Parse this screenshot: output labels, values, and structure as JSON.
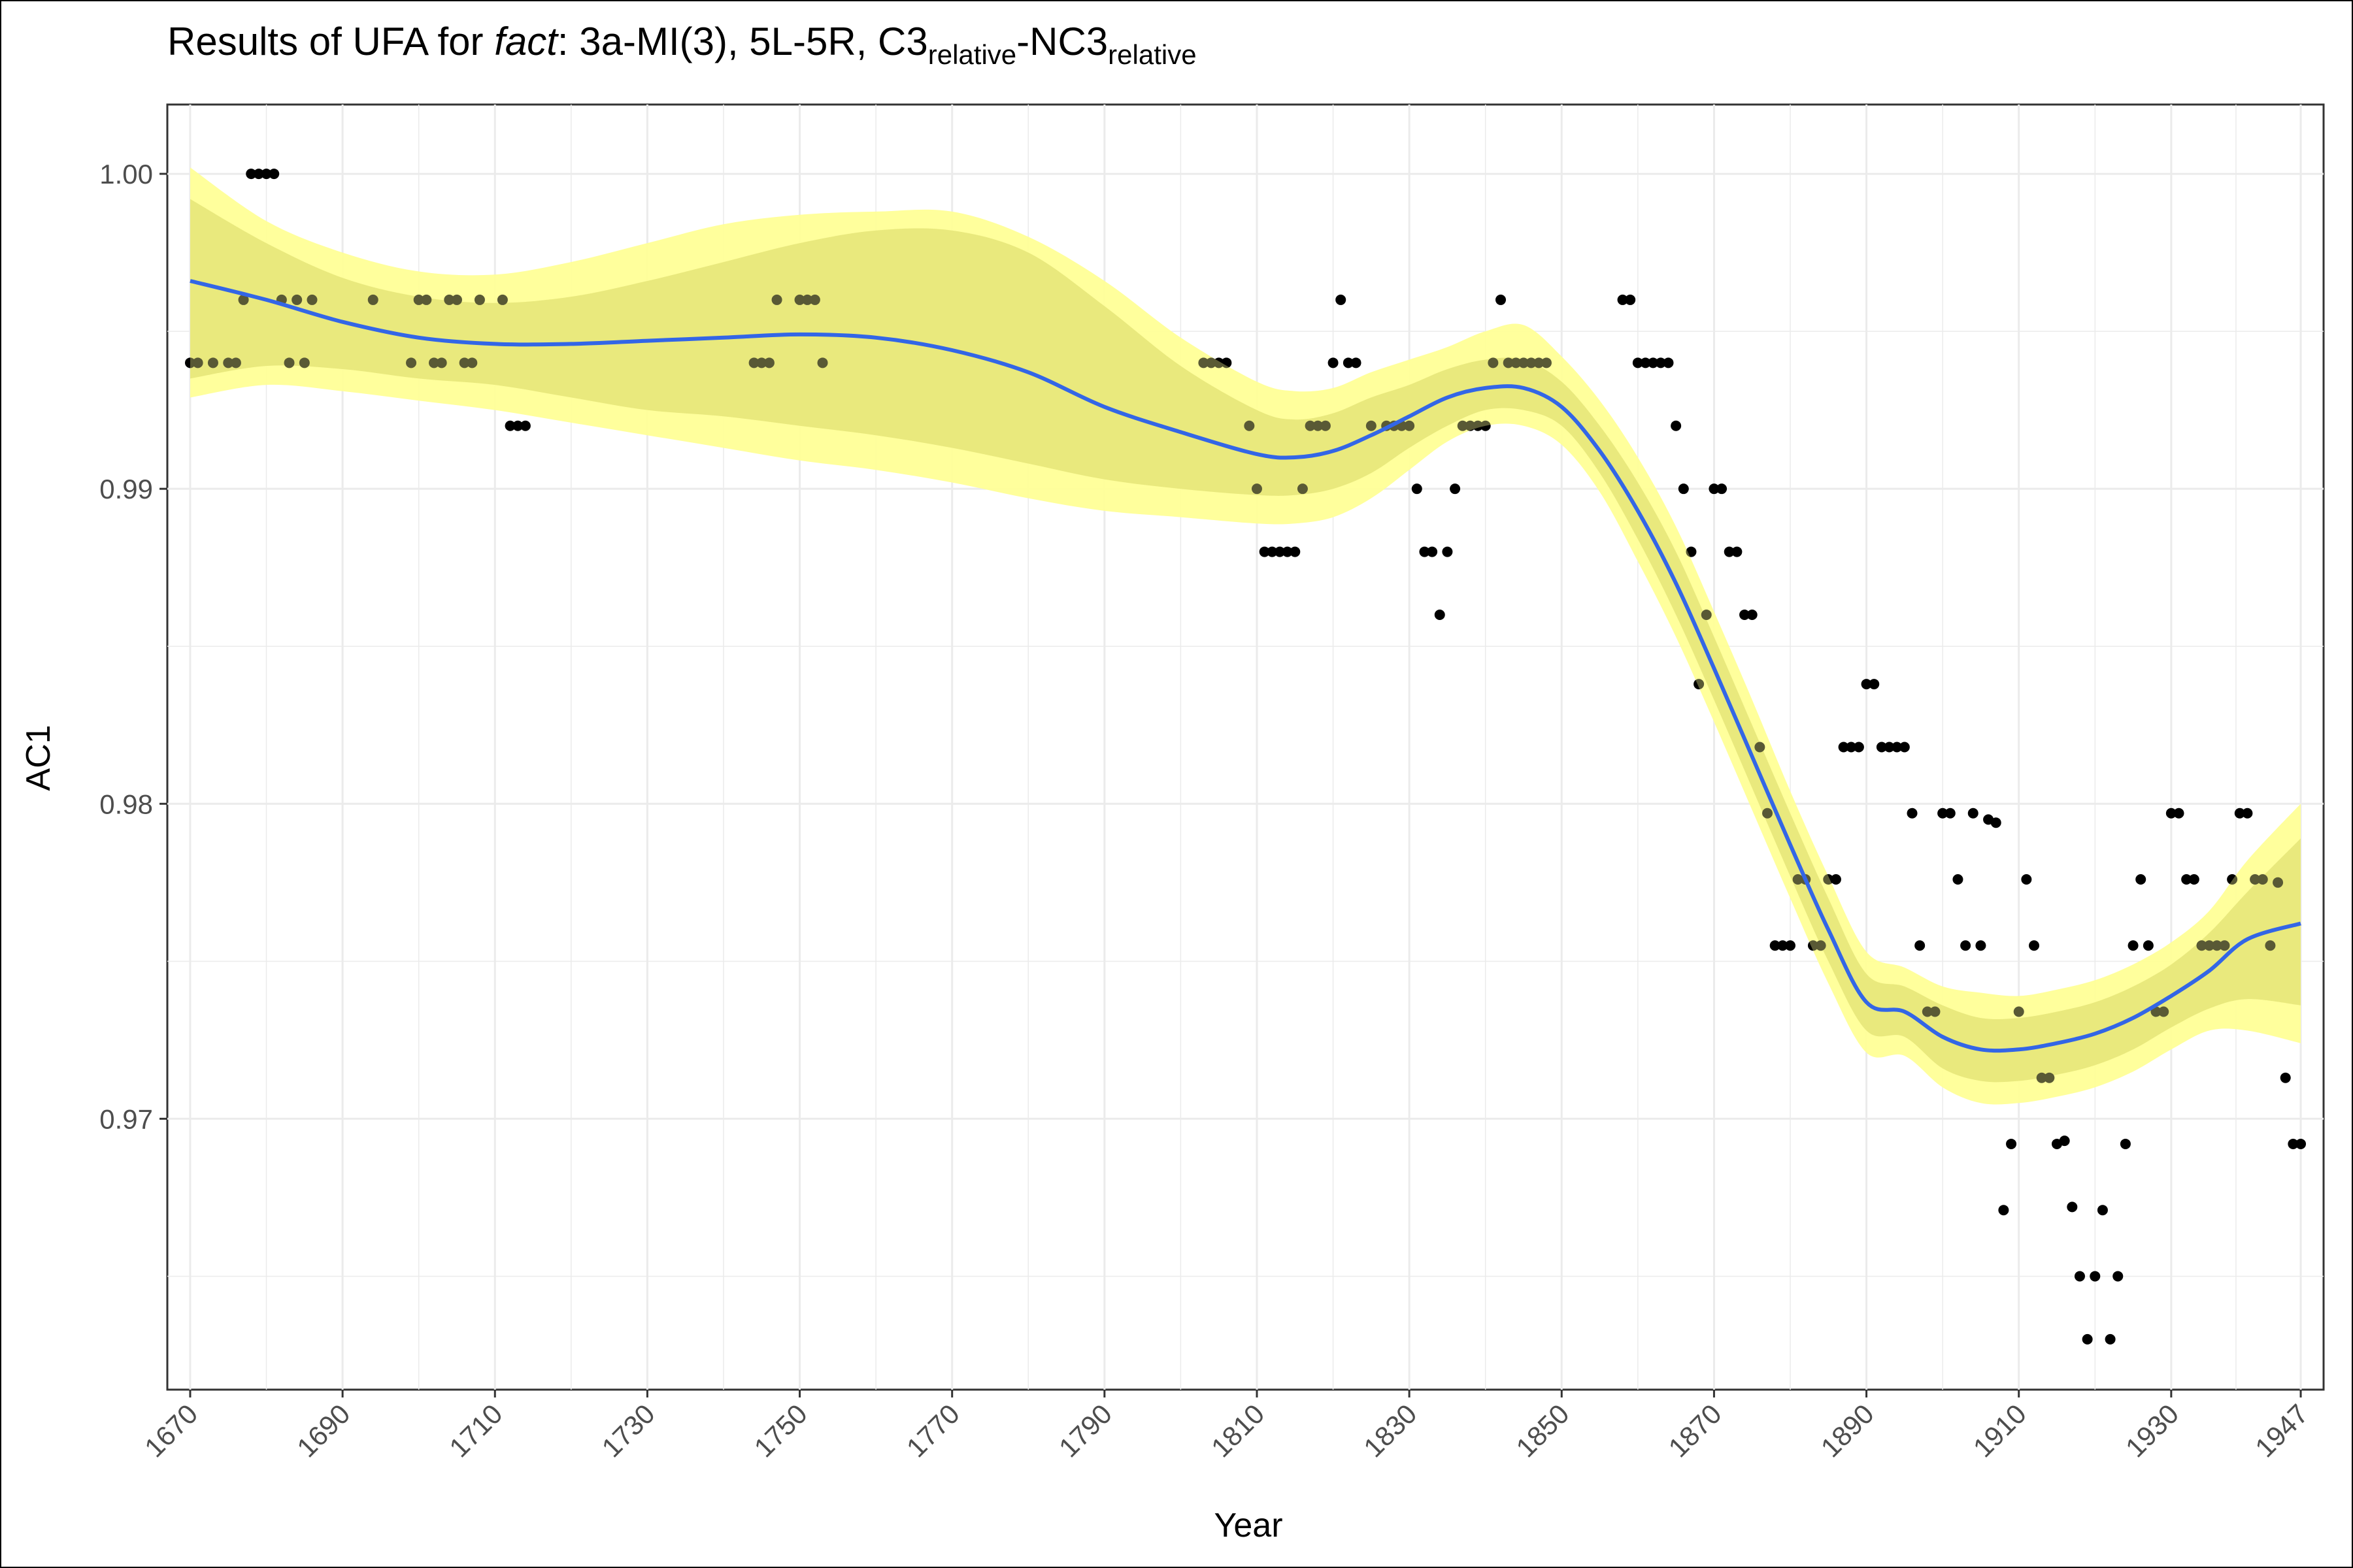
{
  "chart_data": {
    "type": "scatter",
    "title": {
      "prefix": "Results of UFA for ",
      "word": "fact",
      "mid": ": 3a-MI(3), 5L-5R, C3",
      "sub1": "relative",
      "dash": "-NC3",
      "sub2": "relative"
    },
    "xlabel": "Year",
    "ylabel": "AC1",
    "xlim": [
      1667,
      1950
    ],
    "ylim": [
      0.9614,
      1.0022
    ],
    "x_ticks": [
      1670,
      1690,
      1710,
      1730,
      1750,
      1770,
      1790,
      1810,
      1830,
      1850,
      1870,
      1890,
      1910,
      1930,
      1947
    ],
    "y_ticks": [
      0.97,
      0.98,
      0.99,
      1.0
    ],
    "y_tick_labels": [
      "0.97",
      "0.98",
      "0.99",
      "1.00"
    ],
    "grid": true,
    "colors": {
      "points": "#000000",
      "smooth_line": "#3366e6",
      "outer_band": "#ffff99",
      "inner_band": "#c8c850",
      "grid": "#ebebeb"
    },
    "series": [
      {
        "values": [
          [
            1670,
            0.994
          ],
          [
            1671,
            0.994
          ],
          [
            1673,
            0.994
          ],
          [
            1675,
            0.994
          ],
          [
            1676,
            0.994
          ],
          [
            1677,
            0.996
          ],
          [
            1678,
            1.0
          ],
          [
            1679,
            1.0
          ],
          [
            1680,
            1.0
          ],
          [
            1681,
            1.0
          ],
          [
            1682,
            0.996
          ],
          [
            1683,
            0.994
          ],
          [
            1684,
            0.996
          ],
          [
            1685,
            0.994
          ],
          [
            1686,
            0.996
          ],
          [
            1694,
            0.996
          ],
          [
            1699,
            0.994
          ],
          [
            1700,
            0.996
          ],
          [
            1701,
            0.996
          ],
          [
            1702,
            0.994
          ],
          [
            1703,
            0.994
          ],
          [
            1704,
            0.996
          ],
          [
            1705,
            0.996
          ],
          [
            1706,
            0.994
          ],
          [
            1707,
            0.994
          ],
          [
            1708,
            0.996
          ],
          [
            1711,
            0.996
          ],
          [
            1712,
            0.992
          ],
          [
            1713,
            0.992
          ],
          [
            1714,
            0.992
          ],
          [
            1744,
            0.994
          ],
          [
            1745,
            0.994
          ],
          [
            1746,
            0.994
          ],
          [
            1747,
            0.996
          ],
          [
            1750,
            0.996
          ],
          [
            1751,
            0.996
          ],
          [
            1752,
            0.996
          ],
          [
            1753,
            0.994
          ],
          [
            1803,
            0.994
          ],
          [
            1804,
            0.994
          ],
          [
            1805,
            0.994
          ],
          [
            1806,
            0.994
          ],
          [
            1809,
            0.992
          ],
          [
            1810,
            0.99
          ],
          [
            1811,
            0.988
          ],
          [
            1812,
            0.988
          ],
          [
            1813,
            0.988
          ],
          [
            1814,
            0.988
          ],
          [
            1815,
            0.988
          ],
          [
            1816,
            0.99
          ],
          [
            1817,
            0.992
          ],
          [
            1818,
            0.992
          ],
          [
            1819,
            0.992
          ],
          [
            1820,
            0.994
          ],
          [
            1821,
            0.996
          ],
          [
            1822,
            0.994
          ],
          [
            1823,
            0.994
          ],
          [
            1825,
            0.992
          ],
          [
            1827,
            0.992
          ],
          [
            1828,
            0.992
          ],
          [
            1829,
            0.992
          ],
          [
            1830,
            0.992
          ],
          [
            1831,
            0.99
          ],
          [
            1832,
            0.988
          ],
          [
            1833,
            0.988
          ],
          [
            1834,
            0.986
          ],
          [
            1835,
            0.988
          ],
          [
            1836,
            0.99
          ],
          [
            1837,
            0.992
          ],
          [
            1838,
            0.992
          ],
          [
            1839,
            0.992
          ],
          [
            1840,
            0.992
          ],
          [
            1841,
            0.994
          ],
          [
            1842,
            0.996
          ],
          [
            1843,
            0.994
          ],
          [
            1844,
            0.994
          ],
          [
            1845,
            0.994
          ],
          [
            1846,
            0.994
          ],
          [
            1847,
            0.994
          ],
          [
            1848,
            0.994
          ],
          [
            1858,
            0.996
          ],
          [
            1859,
            0.996
          ],
          [
            1860,
            0.994
          ],
          [
            1861,
            0.994
          ],
          [
            1862,
            0.994
          ],
          [
            1863,
            0.994
          ],
          [
            1864,
            0.994
          ],
          [
            1865,
            0.992
          ],
          [
            1866,
            0.99
          ],
          [
            1867,
            0.988
          ],
          [
            1868,
            0.9838
          ],
          [
            1869,
            0.986
          ],
          [
            1870,
            0.99
          ],
          [
            1871,
            0.99
          ],
          [
            1872,
            0.988
          ],
          [
            1873,
            0.988
          ],
          [
            1874,
            0.986
          ],
          [
            1875,
            0.986
          ],
          [
            1876,
            0.9818
          ],
          [
            1877,
            0.9797
          ],
          [
            1878,
            0.9755
          ],
          [
            1879,
            0.9755
          ],
          [
            1880,
            0.9755
          ],
          [
            1881,
            0.9776
          ],
          [
            1882,
            0.9776
          ],
          [
            1883,
            0.9755
          ],
          [
            1884,
            0.9755
          ],
          [
            1885,
            0.9776
          ],
          [
            1886,
            0.9776
          ],
          [
            1887,
            0.9818
          ],
          [
            1888,
            0.9818
          ],
          [
            1889,
            0.9818
          ],
          [
            1890,
            0.9838
          ],
          [
            1891,
            0.9838
          ],
          [
            1892,
            0.9818
          ],
          [
            1893,
            0.9818
          ],
          [
            1894,
            0.9818
          ],
          [
            1895,
            0.9818
          ],
          [
            1896,
            0.9797
          ],
          [
            1897,
            0.9755
          ],
          [
            1898,
            0.9734
          ],
          [
            1899,
            0.9734
          ],
          [
            1900,
            0.9797
          ],
          [
            1901,
            0.9797
          ],
          [
            1902,
            0.9776
          ],
          [
            1903,
            0.9755
          ],
          [
            1904,
            0.9797
          ],
          [
            1905,
            0.9755
          ],
          [
            1906,
            0.9795
          ],
          [
            1907,
            0.9794
          ],
          [
            1908,
            0.9671
          ],
          [
            1909,
            0.9692
          ],
          [
            1910,
            0.9734
          ],
          [
            1911,
            0.9776
          ],
          [
            1912,
            0.9755
          ],
          [
            1913,
            0.9713
          ],
          [
            1914,
            0.9713
          ],
          [
            1915,
            0.9692
          ],
          [
            1916,
            0.9693
          ],
          [
            1917,
            0.9672
          ],
          [
            1918,
            0.965
          ],
          [
            1919,
            0.963
          ],
          [
            1920,
            0.965
          ],
          [
            1921,
            0.9671
          ],
          [
            1922,
            0.963
          ],
          [
            1923,
            0.965
          ],
          [
            1924,
            0.9692
          ],
          [
            1925,
            0.9755
          ],
          [
            1926,
            0.9776
          ],
          [
            1927,
            0.9755
          ],
          [
            1928,
            0.9734
          ],
          [
            1929,
            0.9734
          ],
          [
            1930,
            0.9797
          ],
          [
            1931,
            0.9797
          ],
          [
            1932,
            0.9776
          ],
          [
            1933,
            0.9776
          ],
          [
            1934,
            0.9755
          ],
          [
            1935,
            0.9755
          ],
          [
            1936,
            0.9755
          ],
          [
            1937,
            0.9755
          ],
          [
            1938,
            0.9776
          ],
          [
            1939,
            0.9797
          ],
          [
            1940,
            0.9797
          ],
          [
            1941,
            0.9776
          ],
          [
            1942,
            0.9776
          ],
          [
            1943,
            0.9755
          ],
          [
            1944,
            0.9775
          ],
          [
            1945,
            0.9713
          ],
          [
            1946,
            0.9692
          ],
          [
            1947,
            0.9692
          ]
        ]
      }
    ],
    "smooth": {
      "x": [
        1670,
        1680,
        1690,
        1700,
        1710,
        1720,
        1730,
        1740,
        1750,
        1760,
        1770,
        1780,
        1790,
        1800,
        1810,
        1815,
        1820,
        1825,
        1830,
        1835,
        1840,
        1845,
        1850,
        1855,
        1860,
        1865,
        1870,
        1875,
        1880,
        1885,
        1890,
        1895,
        1900,
        1905,
        1910,
        1915,
        1920,
        1925,
        1930,
        1935,
        1940,
        1947
      ],
      "y": [
        0.9966,
        0.996,
        0.9953,
        0.9948,
        0.9946,
        0.9946,
        0.9947,
        0.9948,
        0.9949,
        0.9948,
        0.9944,
        0.9937,
        0.9926,
        0.9918,
        0.9911,
        0.991,
        0.9912,
        0.9917,
        0.9923,
        0.9929,
        0.9932,
        0.9932,
        0.9926,
        0.9912,
        0.9893,
        0.987,
        0.9843,
        0.9815,
        0.9787,
        0.976,
        0.9737,
        0.9734,
        0.9726,
        0.9722,
        0.9722,
        0.9724,
        0.9727,
        0.9732,
        0.9739,
        0.9747,
        0.9757,
        0.9762
      ],
      "inner_lo": [
        0.9935,
        0.9939,
        0.9938,
        0.9935,
        0.9933,
        0.9929,
        0.9925,
        0.9923,
        0.992,
        0.9917,
        0.9913,
        0.9908,
        0.9903,
        0.99,
        0.9898,
        0.9898,
        0.99,
        0.9905,
        0.9913,
        0.992,
        0.9925,
        0.9925,
        0.992,
        0.9905,
        0.9884,
        0.986,
        0.9833,
        0.9805,
        0.9777,
        0.975,
        0.9728,
        0.9726,
        0.9716,
        0.9712,
        0.9712,
        0.9714,
        0.9717,
        0.9722,
        0.9729,
        0.9735,
        0.9738,
        0.9736
      ],
      "inner_hi": [
        0.9992,
        0.9978,
        0.9967,
        0.9961,
        0.9959,
        0.9961,
        0.9966,
        0.9972,
        0.9978,
        0.9982,
        0.9982,
        0.9975,
        0.9958,
        0.9939,
        0.9925,
        0.9922,
        0.9924,
        0.9929,
        0.9933,
        0.9938,
        0.9941,
        0.9941,
        0.9934,
        0.992,
        0.9902,
        0.988,
        0.9853,
        0.9825,
        0.9797,
        0.977,
        0.9746,
        0.9742,
        0.9736,
        0.9732,
        0.9732,
        0.9734,
        0.9737,
        0.9742,
        0.9749,
        0.9759,
        0.9772,
        0.9789
      ],
      "outer_lo": [
        0.9929,
        0.9933,
        0.9931,
        0.9928,
        0.9925,
        0.9921,
        0.9917,
        0.9913,
        0.9909,
        0.9906,
        0.9902,
        0.9897,
        0.9893,
        0.9891,
        0.9889,
        0.9889,
        0.9891,
        0.9897,
        0.9906,
        0.9915,
        0.992,
        0.992,
        0.9914,
        0.9899,
        0.9877,
        0.9853,
        0.9826,
        0.9798,
        0.977,
        0.9743,
        0.9721,
        0.972,
        0.971,
        0.9705,
        0.9705,
        0.9707,
        0.971,
        0.9715,
        0.9722,
        0.9728,
        0.9728,
        0.9724
      ],
      "outer_hi": [
        1.0002,
        0.9985,
        0.9975,
        0.9969,
        0.9968,
        0.9972,
        0.9978,
        0.9984,
        0.9987,
        0.9988,
        0.9988,
        0.998,
        0.9966,
        0.9948,
        0.9934,
        0.9931,
        0.9932,
        0.9937,
        0.9941,
        0.9945,
        0.995,
        0.9952,
        0.9942,
        0.9928,
        0.991,
        0.9888,
        0.9861,
        0.9833,
        0.9804,
        0.9777,
        0.9753,
        0.9748,
        0.9742,
        0.974,
        0.9739,
        0.9741,
        0.9744,
        0.9749,
        0.9756,
        0.9766,
        0.9782,
        0.98
      ]
    }
  }
}
